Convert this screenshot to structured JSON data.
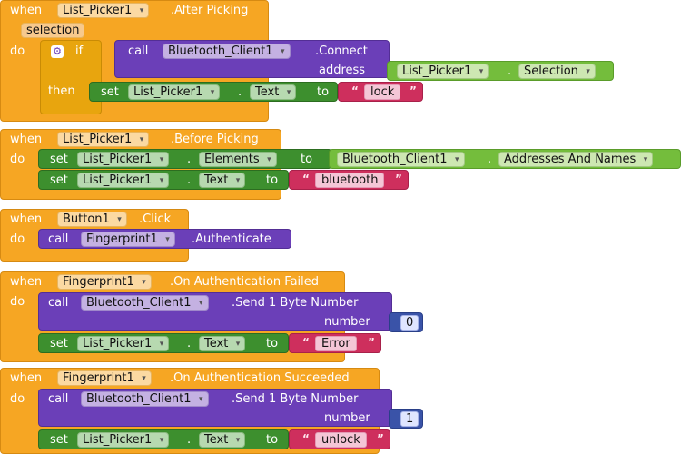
{
  "kw": {
    "when": "when",
    "do": "do",
    "if": "if",
    "then": "then",
    "call": "call",
    "set": "set",
    "to": "to",
    "address": "address",
    "number": "number",
    "selection": "selection"
  },
  "events": [
    {
      "component": "List_Picker1",
      "event": ".After Picking"
    },
    {
      "component": "List_Picker1",
      "event": ".Before Picking"
    },
    {
      "component": "Button1",
      "event": ".Click"
    },
    {
      "component": "Fingerprint1",
      "event": ".On Authentication Failed"
    },
    {
      "component": "Fingerprint1",
      "event": ".On Authentication Succeeded"
    }
  ],
  "blocks": {
    "connect_component": "Bluetooth_Client1",
    "connect_method": ".Connect",
    "selection_component": "List_Picker1",
    "selection_property": "Selection",
    "set1_component": "List_Picker1",
    "set1_property": "Text",
    "set1_value": "lock",
    "elements_component": "List_Picker1",
    "elements_property": "Elements",
    "addr_component": "Bluetooth_Client1",
    "addr_property": "Addresses And Names",
    "set2_component": "List_Picker1",
    "set2_property": "Text",
    "set2_value": "bluetooth",
    "auth_component": "Fingerprint1",
    "auth_method": ".Authenticate",
    "send1_component": "Bluetooth_Client1",
    "send1_method": ".Send 1 Byte Number",
    "send1_number": "0",
    "set3_component": "List_Picker1",
    "set3_property": "Text",
    "set3_value": "Error",
    "send2_component": "Bluetooth_Client1",
    "send2_method": ".Send 1 Byte Number",
    "send2_number": "1",
    "set4_component": "List_Picker1",
    "set4_property": "Text",
    "set4_value": "unlock"
  },
  "icons": {
    "quote_open": "“",
    "quote_close": "”",
    "dropdown_arrow": "▾",
    "gear": "⚙"
  },
  "colors": {
    "event_orange": "#f6a623",
    "procedure_purple": "#6b3fb8",
    "setter_green": "#3d8f2e",
    "getter_lightgreen": "#74bd3c",
    "text_pink": "#ce2f5d",
    "math_navy": "#3a53a8"
  }
}
